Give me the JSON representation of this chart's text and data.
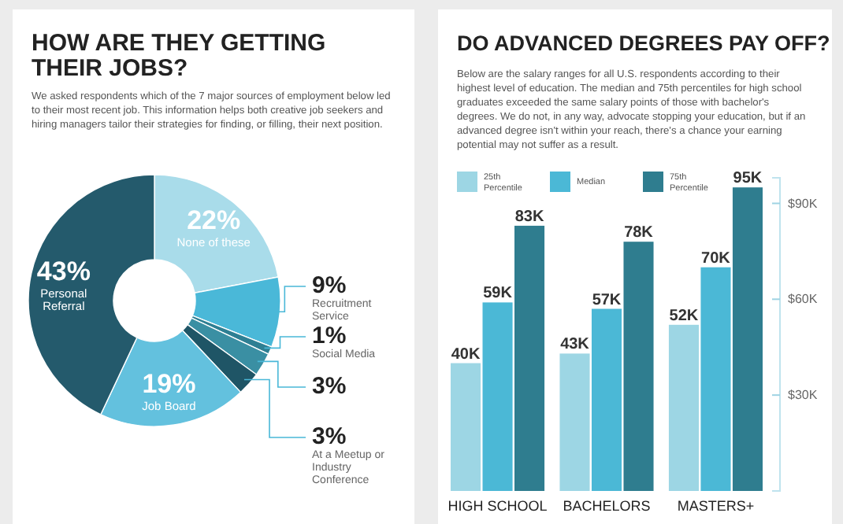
{
  "chart_data": [
    {
      "type": "donut",
      "title": "HOW ARE THEY GETTING THEIR JOBS?",
      "subtitle": "We asked respondents which of the 7 major sources of employment below led to their most recent job. This information helps both creative job seekers and hiring managers tailor their strategies for finding, or filling, their next position.",
      "categories": [
        "None of these",
        "Recruitment Service",
        "Social Media",
        null,
        "At a Meetup or Industry Conference",
        "Job Board",
        "Personal Referral"
      ],
      "values": [
        22,
        9,
        1,
        3,
        3,
        19,
        43
      ],
      "value_labels": [
        "22%",
        "9%",
        "1%",
        "3%",
        "3%",
        "19%",
        "43%"
      ],
      "colors": [
        "#a9dcea",
        "#4ab8d8",
        "#2e7f93",
        "#3a8fa3",
        "#1f5566",
        "#63c1de",
        "#245a6c"
      ]
    },
    {
      "type": "bar",
      "title": "DO ADVANCED DEGREES PAY OFF?",
      "subtitle": "Below are the salary ranges for all U.S. respondents according to their highest level of education. The median and 75th percentiles for high school graduates exceeded the same salary points of those with bachelor's degrees. We do not, in any way, advocate stopping your education, but if an advanced degree isn't within your reach, there's a chance your earning potential may not suffer as a result.",
      "categories": [
        "HIGH SCHOOL",
        "BACHELORS",
        "MASTERS+"
      ],
      "series": [
        {
          "name": "25th Percentile",
          "color": "#9dd6e4",
          "values": [
            40,
            43,
            52
          ],
          "value_labels": [
            "40K",
            "43K",
            "52K"
          ]
        },
        {
          "name": "Median",
          "color": "#4bb8d6",
          "values": [
            59,
            57,
            70
          ],
          "value_labels": [
            "59K",
            "57K",
            "70K"
          ]
        },
        {
          "name": "75th Percentile",
          "color": "#2f7d8f",
          "values": [
            83,
            78,
            95
          ],
          "value_labels": [
            "83K",
            "78K",
            "95K"
          ]
        }
      ],
      "ylim": [
        0,
        98
      ],
      "yticks": [
        {
          "value": 30,
          "label": "$30K"
        },
        {
          "value": 60,
          "label": "$60K"
        },
        {
          "value": 90,
          "label": "$90K"
        }
      ],
      "legend": "top left",
      "grid": false
    }
  ]
}
